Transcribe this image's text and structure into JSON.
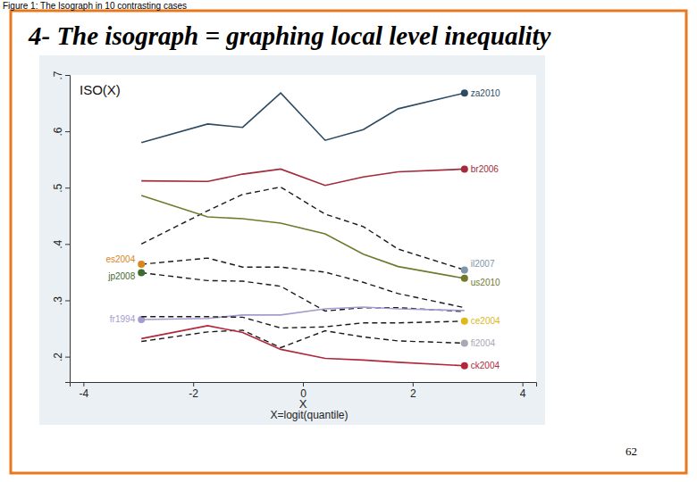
{
  "chart_data": {
    "type": "line",
    "caption": "Figure 1: The Isograph in 10 contrasting cases",
    "title": "4- The isograph = graphing local level inequality",
    "x_label": "X",
    "y_label": "ISO(X)",
    "annotations": [
      "X=logit(quantile)",
      "62"
    ],
    "x": [
      -2.944,
      -1.735,
      -1.099,
      -0.405,
      0.405,
      1.099,
      1.735,
      2.944
    ],
    "xlim": [
      -4.25,
      4.25
    ],
    "xticks": [
      -4,
      -2,
      0,
      2,
      4
    ],
    "ylim": [
      0.155,
      0.7
    ],
    "yticks": [
      {
        "value": 0.2,
        "label": ".2"
      },
      {
        "value": 0.3,
        "label": ".3"
      },
      {
        "value": 0.4,
        "label": ".4"
      },
      {
        "value": 0.5,
        "label": ".5"
      },
      {
        "value": 0.6,
        "label": ".6"
      },
      {
        "value": 0.7,
        "label": ".7"
      }
    ],
    "grid": false,
    "series": [
      {
        "name": "za2010",
        "color": "#2c4b63",
        "line_style": "solid",
        "values": [
          0.58,
          0.613,
          0.607,
          0.668,
          0.584,
          0.603,
          0.64,
          0.668
        ]
      },
      {
        "name": "br2006",
        "color": "#a12a3b",
        "line_style": "solid",
        "values": [
          0.512,
          0.511,
          0.524,
          0.533,
          0.504,
          0.519,
          0.528,
          0.533
        ]
      },
      {
        "name": "il2007",
        "color": "#7f95a8",
        "line_style": "dashed",
        "values": [
          0.4,
          0.459,
          0.488,
          0.501,
          0.453,
          0.431,
          0.391,
          0.354
        ]
      },
      {
        "name": "us2010",
        "color": "#6f7a2e",
        "line_style": "solid",
        "values": [
          0.486,
          0.448,
          0.445,
          0.437,
          0.418,
          0.382,
          0.36,
          0.339
        ]
      },
      {
        "name": "es2004",
        "color": "#d9861f",
        "line_style": "dashed",
        "values": [
          0.364,
          0.375,
          0.359,
          0.359,
          0.35,
          0.332,
          0.312,
          0.287
        ]
      },
      {
        "name": "jp2008",
        "color": "#3e6b2e",
        "line_style": "dashed",
        "values": [
          0.349,
          0.335,
          0.334,
          0.325,
          0.281,
          0.287,
          0.287,
          0.28
        ]
      },
      {
        "name": "fr1994",
        "color": "#a49bd0",
        "line_style": "solid",
        "values": [
          0.266,
          0.268,
          0.274,
          0.274,
          0.285,
          0.288,
          0.285,
          0.282
        ]
      },
      {
        "name": "ce2004",
        "color": "#e0b81c",
        "line_style": "dashed",
        "values": [
          0.271,
          0.271,
          0.27,
          0.251,
          0.253,
          0.26,
          0.26,
          0.263
        ]
      },
      {
        "name": "fi2004",
        "color": "#a8a8b4",
        "line_style": "dashed",
        "values": [
          0.227,
          0.244,
          0.247,
          0.216,
          0.246,
          0.235,
          0.228,
          0.224
        ]
      },
      {
        "name": "ck2004",
        "color": "#b0283a",
        "line_style": "solid",
        "values": [
          0.232,
          0.255,
          0.243,
          0.213,
          0.197,
          0.194,
          0.19,
          0.184
        ]
      }
    ]
  }
}
